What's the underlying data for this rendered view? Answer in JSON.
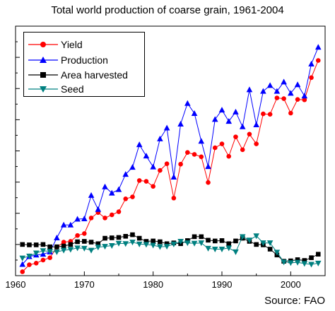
{
  "chart_data": {
    "type": "line",
    "title": "Total world production of coarse grain, 1961-2004",
    "source": "Source:  FAO",
    "x_ticks": [
      "1960",
      "1970",
      "1980",
      "1990",
      "2000"
    ],
    "xlim": [
      1960,
      2005
    ],
    "ylim": [
      0,
      64
    ],
    "y_tick_count": 16,
    "y_tick_labels": false,
    "legend_position": "top-left",
    "x": [
      1961,
      1962,
      1963,
      1964,
      1965,
      1966,
      1967,
      1968,
      1969,
      1970,
      1971,
      1972,
      1973,
      1974,
      1975,
      1976,
      1977,
      1978,
      1979,
      1980,
      1981,
      1982,
      1983,
      1984,
      1985,
      1986,
      1987,
      1988,
      1989,
      1990,
      1991,
      1992,
      1993,
      1994,
      1995,
      1996,
      1997,
      1998,
      1999,
      2000,
      2001,
      2002,
      2003,
      2004
    ],
    "series": [
      {
        "name": "Yield",
        "color": "#ff0000",
        "marker": "circle",
        "values": [
          1.0,
          2.8,
          3.2,
          4.0,
          4.6,
          7.3,
          8.6,
          8.8,
          10.3,
          10.8,
          14.8,
          16.2,
          14.8,
          15.6,
          16.4,
          19.7,
          20.2,
          24.4,
          24.2,
          22.9,
          27.0,
          28.7,
          19.9,
          28.6,
          31.6,
          31.1,
          30.5,
          23.9,
          32.8,
          33.8,
          30.6,
          35.6,
          32.3,
          36.3,
          33.8,
          41.5,
          41.4,
          45.6,
          45.4,
          41.7,
          45.2,
          45.1,
          50.8,
          55.2
        ]
      },
      {
        "name": "Production",
        "color": "#0000ff",
        "marker": "triangle-up",
        "values": [
          2.9,
          4.9,
          5.3,
          5.5,
          6.1,
          9.7,
          13.0,
          13.0,
          14.5,
          14.6,
          20.6,
          17.0,
          22.8,
          21.2,
          22.1,
          26.0,
          27.8,
          33.6,
          30.7,
          27.9,
          35.1,
          37.9,
          25.3,
          38.9,
          44.2,
          41.6,
          34.5,
          28.0,
          40.1,
          42.5,
          39.6,
          42.0,
          38.2,
          47.7,
          38.7,
          47.3,
          48.8,
          47.3,
          49.7,
          46.8,
          49.0,
          46.1,
          54.3,
          58.6
        ]
      },
      {
        "name": "Area harvested",
        "color": "#000000",
        "marker": "square",
        "values": [
          8.0,
          7.9,
          7.9,
          8.0,
          7.4,
          7.4,
          7.6,
          8.0,
          8.7,
          8.8,
          8.6,
          8.2,
          9.6,
          9.7,
          9.8,
          10.1,
          10.5,
          9.6,
          8.8,
          8.9,
          8.7,
          8.2,
          8.4,
          8.2,
          9.0,
          10.0,
          10.0,
          9.1,
          8.9,
          9.0,
          8.2,
          8.9,
          9.6,
          8.8,
          8.0,
          7.9,
          6.8,
          5.3,
          3.7,
          3.8,
          4.1,
          3.9,
          4.6,
          5.5
        ]
      },
      {
        "name": "Seed",
        "color": "#008080",
        "marker": "triangle-down",
        "values": [
          4.5,
          5.0,
          5.8,
          6.4,
          6.2,
          6.1,
          6.5,
          6.7,
          7.1,
          7.0,
          6.5,
          7.3,
          7.5,
          7.7,
          8.3,
          8.2,
          8.6,
          8.1,
          8.0,
          7.8,
          7.4,
          7.5,
          8.1,
          8.8,
          8.4,
          8.3,
          8.4,
          7.0,
          6.8,
          6.8,
          7.1,
          6.1,
          10.0,
          9.1,
          10.2,
          8.4,
          8.4,
          6.0,
          3.5,
          3.3,
          3.4,
          3.1,
          2.9,
          3.2
        ]
      }
    ]
  }
}
